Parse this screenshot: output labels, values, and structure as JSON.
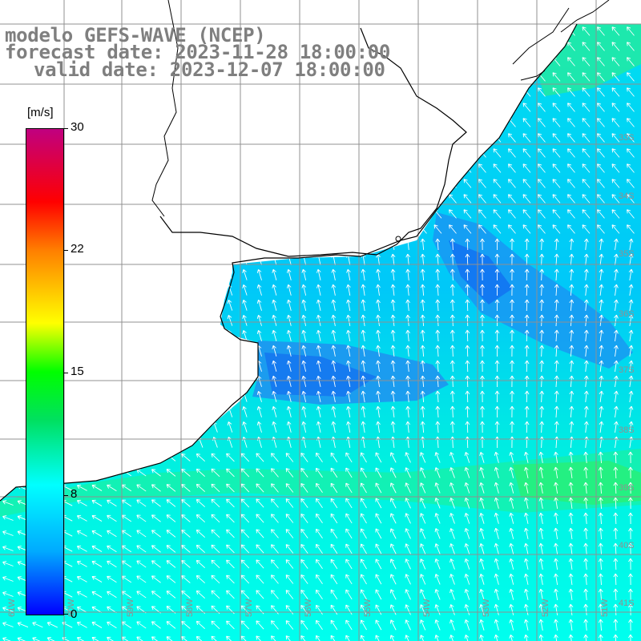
{
  "header": {
    "line1": "modelo GEFS-WAVE (NCEP)",
    "line2": "forecast date: 2023-11-28 18:00:00",
    "line3": "valid date: 2023-12-07 18:00:00"
  },
  "legend": {
    "unit": "[m/s]",
    "ticks": [
      "30",
      "22",
      "15",
      "8",
      "0"
    ],
    "tick_values": [
      30,
      22,
      15,
      8,
      0
    ],
    "range": [
      0,
      30
    ],
    "colors": [
      "#0000ff",
      "#00aaff",
      "#00ffff",
      "#00e060",
      "#00ff00",
      "#ffff00",
      "#ff7f00",
      "#ff0000",
      "#c00080"
    ]
  },
  "map": {
    "right_lat_labels": [
      "33S",
      "34S",
      "35S",
      "36S",
      "37S",
      "38S",
      "39S",
      "40S",
      "41S"
    ],
    "bottom_lon_labels": [
      "61W",
      "60W",
      "59W",
      "58W",
      "57W",
      "56W",
      "55W",
      "54W",
      "53W",
      "52W",
      "51W"
    ],
    "land_color": "#ffffff",
    "grid_color": "#909090",
    "arrow_color": "#ffffff"
  }
}
